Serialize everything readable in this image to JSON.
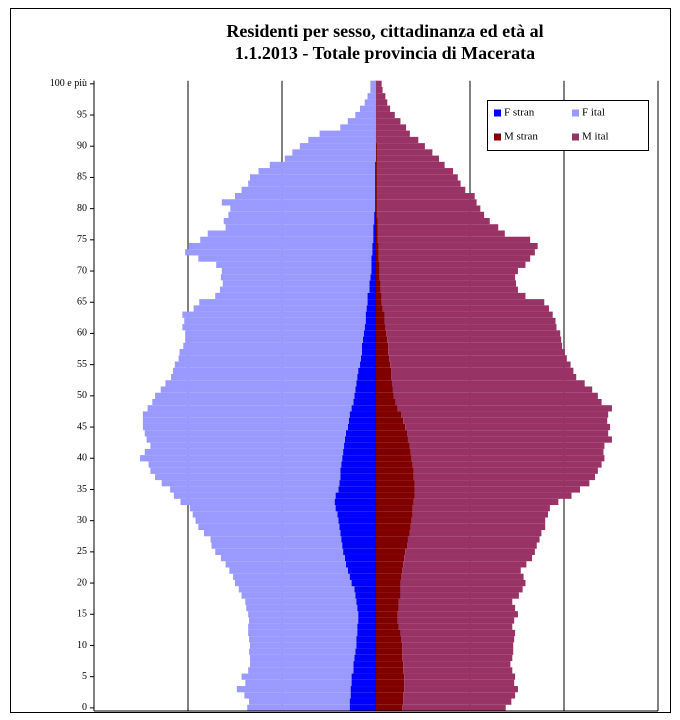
{
  "chart_data": {
    "type": "stacked-bar-horizontal",
    "title": [
      "Residenti per sesso, cittadinanza  ed età al",
      "1.1.2013 - Totale provincia di Macerata"
    ],
    "categories": [
      "0",
      null,
      null,
      null,
      null,
      "5",
      null,
      null,
      null,
      null,
      "10",
      null,
      null,
      null,
      null,
      "15",
      null,
      null,
      null,
      null,
      "20",
      null,
      null,
      null,
      null,
      "25",
      null,
      null,
      null,
      null,
      "30",
      null,
      null,
      null,
      null,
      "35",
      null,
      null,
      null,
      null,
      "40",
      null,
      null,
      null,
      null,
      "45",
      null,
      null,
      null,
      null,
      "50",
      null,
      null,
      null,
      null,
      "55",
      null,
      null,
      null,
      null,
      "60",
      null,
      null,
      null,
      null,
      "65",
      null,
      null,
      null,
      null,
      "70",
      null,
      null,
      null,
      null,
      "75",
      null,
      null,
      null,
      null,
      "80",
      null,
      null,
      null,
      null,
      "85",
      null,
      null,
      null,
      null,
      "90",
      null,
      null,
      null,
      null,
      "95",
      null,
      null,
      null,
      null,
      "100 e più"
    ],
    "xlim": [
      -3000,
      3000
    ],
    "xticks": [
      -3000,
      -2000,
      -1000,
      0,
      1000,
      2000,
      3000
    ],
    "grid": true,
    "legend": "upper right",
    "series": [
      {
        "name": "F stran",
        "color": "#0000ff",
        "values": [
          -280,
          -280,
          -270,
          -270,
          -260,
          -260,
          -240,
          -240,
          -230,
          -220,
          -210,
          -210,
          -200,
          -200,
          -190,
          -190,
          -200,
          -210,
          -220,
          -230,
          -260,
          -280,
          -300,
          -320,
          -330,
          -350,
          -360,
          -370,
          -380,
          -390,
          -400,
          -410,
          -430,
          -440,
          -430,
          -400,
          -390,
          -380,
          -380,
          -370,
          -360,
          -350,
          -340,
          -330,
          -320,
          -300,
          -290,
          -280,
          -260,
          -240,
          -230,
          -220,
          -210,
          -200,
          -190,
          -170,
          -160,
          -150,
          -150,
          -140,
          -130,
          -120,
          -110,
          -110,
          -100,
          -90,
          -90,
          -70,
          -70,
          -60,
          -50,
          -50,
          -50,
          -40,
          -40,
          -30,
          -30,
          -30,
          -20,
          -20,
          -10,
          -10,
          -10,
          -10,
          -10,
          -10,
          -10,
          -10,
          0,
          0,
          0,
          0,
          0,
          0,
          0,
          0,
          0,
          0,
          0,
          0,
          0
        ]
      },
      {
        "name": "F ital",
        "color": "#9999ff",
        "values": [
          -1090,
          -1070,
          -1130,
          -1210,
          -1130,
          -1170,
          -1120,
          -1100,
          -1110,
          -1130,
          -1130,
          -1140,
          -1160,
          -1160,
          -1160,
          -1170,
          -1180,
          -1180,
          -1210,
          -1230,
          -1240,
          -1240,
          -1260,
          -1280,
          -1320,
          -1360,
          -1390,
          -1390,
          -1450,
          -1500,
          -1520,
          -1540,
          -1550,
          -1640,
          -1720,
          -1790,
          -1890,
          -1970,
          -2020,
          -2050,
          -2150,
          -2110,
          -2060,
          -2110,
          -2140,
          -2180,
          -2190,
          -2200,
          -2170,
          -2140,
          -2120,
          -2070,
          -2030,
          -1980,
          -1970,
          -1970,
          -1940,
          -1940,
          -1900,
          -1890,
          -1900,
          -1940,
          -1930,
          -1950,
          -1840,
          -1790,
          -1620,
          -1590,
          -1560,
          -1590,
          -1590,
          -1650,
          -1840,
          -1990,
          -1950,
          -1840,
          -1760,
          -1570,
          -1600,
          -1550,
          -1540,
          -1630,
          -1490,
          -1420,
          -1350,
          -1330,
          -1240,
          -1120,
          -970,
          -890,
          -810,
          -720,
          -600,
          -380,
          -300,
          -220,
          -170,
          -120,
          -90,
          -60,
          -60
        ]
      },
      {
        "name": "M stran",
        "color": "#800000",
        "values": [
          280,
          290,
          290,
          300,
          300,
          300,
          290,
          290,
          280,
          280,
          280,
          270,
          260,
          240,
          230,
          230,
          240,
          240,
          260,
          260,
          260,
          270,
          280,
          290,
          300,
          310,
          330,
          340,
          360,
          370,
          380,
          390,
          390,
          400,
          410,
          410,
          410,
          400,
          400,
          390,
          380,
          370,
          360,
          340,
          330,
          310,
          290,
          270,
          230,
          210,
          190,
          180,
          170,
          160,
          160,
          150,
          140,
          130,
          130,
          120,
          110,
          100,
          90,
          90,
          70,
          60,
          60,
          50,
          50,
          40,
          40,
          40,
          30,
          30,
          30,
          20,
          20,
          20,
          20,
          10,
          10,
          10,
          10,
          10,
          10,
          10,
          10,
          10,
          10,
          10,
          10,
          0,
          0,
          0,
          0,
          0,
          0,
          0,
          0,
          0,
          0
        ]
      },
      {
        "name": "M ital",
        "color": "#993366",
        "values": [
          1100,
          1150,
          1190,
          1210,
          1170,
          1180,
          1160,
          1140,
          1170,
          1180,
          1180,
          1200,
          1220,
          1210,
          1240,
          1280,
          1240,
          1210,
          1260,
          1300,
          1330,
          1300,
          1260,
          1310,
          1360,
          1380,
          1380,
          1400,
          1400,
          1430,
          1420,
          1440,
          1460,
          1540,
          1670,
          1760,
          1860,
          1930,
          1960,
          2010,
          2050,
          2050,
          2070,
          2170,
          2140,
          2180,
          2170,
          2200,
          2280,
          2190,
          2170,
          2120,
          2050,
          1970,
          1940,
          1920,
          1890,
          1880,
          1850,
          1850,
          1850,
          1820,
          1820,
          1790,
          1770,
          1730,
          1530,
          1460,
          1440,
          1440,
          1470,
          1550,
          1610,
          1660,
          1690,
          1620,
          1350,
          1280,
          1190,
          1140,
          1100,
          1060,
          1040,
          940,
          890,
          860,
          810,
          720,
          660,
          590,
          510,
          450,
          360,
          320,
          260,
          200,
          150,
          120,
          100,
          70,
          60
        ]
      }
    ]
  }
}
